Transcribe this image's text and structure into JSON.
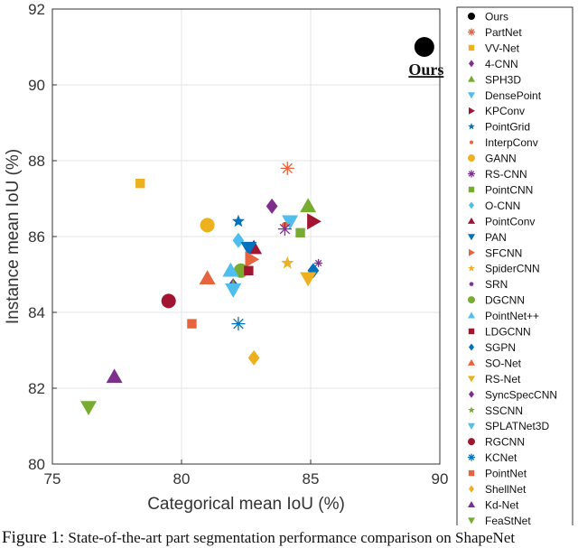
{
  "chart_data": {
    "type": "scatter",
    "xlabel": "Categorical mean IoU (%)",
    "ylabel": "Instance mean IoU (%)",
    "xlim": [
      75,
      90
    ],
    "ylim": [
      80,
      92
    ],
    "xticks": [
      75,
      80,
      85,
      90
    ],
    "yticks": [
      80,
      82,
      84,
      86,
      88,
      90,
      92
    ],
    "grid": true,
    "legend_position": "right",
    "annotation": {
      "text": "Ours",
      "x": 89.4,
      "y": 90.4
    },
    "series": [
      {
        "name": "Ours",
        "marker": "circle",
        "color": "#000000",
        "x": 89.4,
        "y": 91.0
      },
      {
        "name": "PartNet",
        "marker": "asterisk",
        "color": "#e8643c",
        "x": 84.1,
        "y": 87.8
      },
      {
        "name": "VV-Net",
        "marker": "square",
        "color": "#edb120",
        "x": 78.4,
        "y": 87.4
      },
      {
        "name": "4-CNN",
        "marker": "diamond",
        "color": "#7e2f8e",
        "x": 83.5,
        "y": 86.8
      },
      {
        "name": "SPH3D",
        "marker": "triangle-up",
        "color": "#77ac30",
        "x": 84.9,
        "y": 86.8
      },
      {
        "name": "DensePoint",
        "marker": "triangle-down",
        "color": "#4dbeee",
        "x": 84.2,
        "y": 86.4
      },
      {
        "name": "KPConv",
        "marker": "triangle-right",
        "color": "#a2142f",
        "x": 85.1,
        "y": 86.4
      },
      {
        "name": "PointGrid",
        "marker": "star",
        "color": "#0072bd",
        "x": 82.2,
        "y": 86.4
      },
      {
        "name": "InterpConv",
        "marker": "circle-small",
        "color": "#e8643c",
        "x": 84.0,
        "y": 86.3
      },
      {
        "name": "GANN",
        "marker": "circle",
        "color": "#edb120",
        "x": 81.0,
        "y": 86.3
      },
      {
        "name": "RS-CNN",
        "marker": "asterisk",
        "color": "#7e2f8e",
        "x": 84.0,
        "y": 86.2
      },
      {
        "name": "PointCNN",
        "marker": "square",
        "color": "#77ac30",
        "x": 84.6,
        "y": 86.1
      },
      {
        "name": "O-CNN",
        "marker": "diamond",
        "color": "#4dbeee",
        "x": 82.2,
        "y": 85.9
      },
      {
        "name": "PointConv",
        "marker": "triangle-up",
        "color": "#a2142f",
        "x": 82.8,
        "y": 85.7
      },
      {
        "name": "PAN",
        "marker": "triangle-down",
        "color": "#0072bd",
        "x": 82.6,
        "y": 85.7
      },
      {
        "name": "SFCNN",
        "marker": "triangle-right",
        "color": "#e8643c",
        "x": 82.7,
        "y": 85.4
      },
      {
        "name": "SpiderCNN",
        "marker": "star",
        "color": "#edb120",
        "x": 84.1,
        "y": 85.3
      },
      {
        "name": "SRN",
        "marker": "asterisk-small",
        "color": "#7e2f8e",
        "x": 85.3,
        "y": 85.3
      },
      {
        "name": "DGCNN",
        "marker": "circle",
        "color": "#77ac30",
        "x": 82.3,
        "y": 85.1
      },
      {
        "name": "PointNet++",
        "marker": "triangle-up",
        "color": "#4dbeee",
        "x": 81.9,
        "y": 85.1
      },
      {
        "name": "LDGCNN",
        "marker": "square",
        "color": "#a2142f",
        "x": 82.6,
        "y": 85.1
      },
      {
        "name": "SGPN",
        "marker": "diamond",
        "color": "#0072bd",
        "x": 85.1,
        "y": 85.1
      },
      {
        "name": "SO-Net",
        "marker": "triangle-up",
        "color": "#e8643c",
        "x": 81.0,
        "y": 84.9
      },
      {
        "name": "RS-Net",
        "marker": "triangle-down",
        "color": "#edb120",
        "x": 84.9,
        "y": 84.9
      },
      {
        "name": "SyncSpecCNN",
        "marker": "diamond",
        "color": "#7e2f8e",
        "x": 82.0,
        "y": 84.7
      },
      {
        "name": "SSCNN",
        "marker": "star",
        "color": "#77ac30",
        "x": 82.0,
        "y": 84.7
      },
      {
        "name": "SPLATNet3D",
        "marker": "triangle-down",
        "color": "#4dbeee",
        "x": 82.0,
        "y": 84.6
      },
      {
        "name": "RGCNN",
        "marker": "circle",
        "color": "#a2142f",
        "x": 79.5,
        "y": 84.3
      },
      {
        "name": "KCNet",
        "marker": "asterisk",
        "color": "#0072bd",
        "x": 82.2,
        "y": 83.7
      },
      {
        "name": "PointNet",
        "marker": "square",
        "color": "#e8643c",
        "x": 80.4,
        "y": 83.7
      },
      {
        "name": "ShellNet",
        "marker": "diamond",
        "color": "#edb120",
        "x": 82.8,
        "y": 82.8
      },
      {
        "name": "Kd-Net",
        "marker": "triangle-up",
        "color": "#7e2f8e",
        "x": 77.4,
        "y": 82.3
      },
      {
        "name": "FeaStNet",
        "marker": "triangle-down",
        "color": "#77ac30",
        "x": 76.4,
        "y": 81.5
      }
    ]
  },
  "caption": {
    "figure_label": "Figure 1:",
    "text": "State-of-the-art part segmentation performance comparison on ShapeNet"
  }
}
